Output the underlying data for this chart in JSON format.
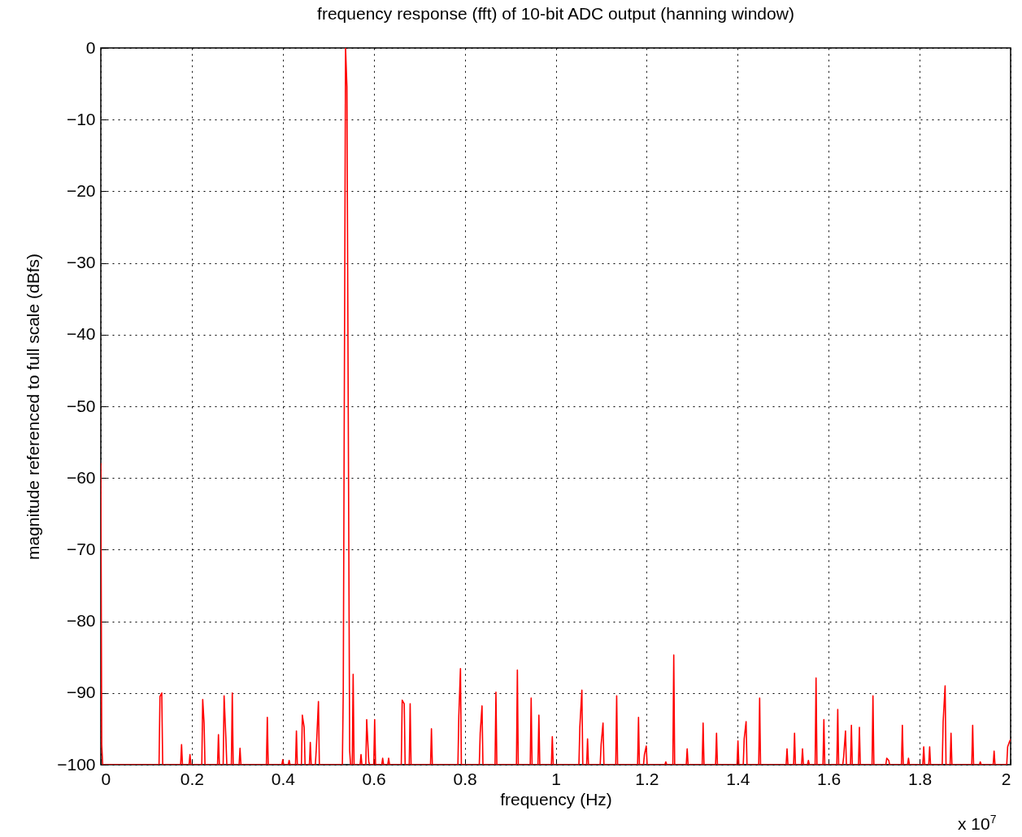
{
  "chart_data": {
    "type": "line",
    "title": "frequency response (fft) of 10-bit ADC output (hanning window)",
    "xlabel": "frequency (Hz)",
    "ylabel": "magnitude referenced to full scale (dBfs)",
    "annotations": [
      "x 10$^{7}$"
    ],
    "xlim": [
      0,
      2
    ],
    "ylim": [
      -100,
      0
    ],
    "xticks": [
      0,
      0.2,
      0.4,
      0.6,
      0.8,
      1,
      1.2,
      1.4,
      1.6,
      1.8,
      2
    ],
    "yticks": [
      -100,
      -90,
      -80,
      -70,
      -60,
      -50,
      -40,
      -30,
      -20,
      -10,
      0
    ],
    "grid": true,
    "line_style": "solid",
    "x": [
      0,
      0.002,
      0.004,
      0.128,
      0.13,
      0.134,
      0.136,
      0.1755,
      0.1775,
      0.1795,
      0.194,
      0.196,
      0.198,
      0.222,
      0.224,
      0.227,
      0.229,
      0.2566,
      0.2586,
      0.2606,
      0.269,
      0.271,
      0.275,
      0.277,
      0.287,
      0.289,
      0.291,
      0.304,
      0.306,
      0.308,
      0.364,
      0.366,
      0.368,
      0.398,
      0.4,
      0.402,
      0.412,
      0.414,
      0.416,
      0.428,
      0.43,
      0.432,
      0.441,
      0.443,
      0.447,
      0.449,
      0.4585,
      0.4605,
      0.4625,
      0.4716,
      0.4736,
      0.4784,
      0.4804,
      0.531,
      0.533,
      0.538,
      0.541,
      0.547,
      0.549,
      0.5527,
      0.5547,
      0.5567,
      0.57,
      0.572,
      0.574,
      0.5825,
      0.5845,
      0.589,
      0.591,
      0.6,
      0.602,
      0.604,
      0.6176,
      0.6196,
      0.6216,
      0.6307,
      0.6327,
      0.6347,
      0.6605,
      0.6625,
      0.667,
      0.669,
      0.678,
      0.68,
      0.682,
      0.7248,
      0.7268,
      0.7288,
      0.785,
      0.787,
      0.7906,
      0.7926,
      0.832,
      0.834,
      0.838,
      0.84,
      0.8666,
      0.8686,
      0.8706,
      0.9137,
      0.9157,
      0.9177,
      0.944,
      0.946,
      0.948,
      0.961,
      0.963,
      0.965,
      0.9905,
      0.9925,
      0.9945,
      1.051,
      1.053,
      1.0575,
      1.0595,
      1.068,
      1.07,
      1.072,
      1.0978,
      1.0998,
      1.104,
      1.106,
      1.132,
      1.134,
      1.136,
      1.18,
      1.182,
      1.184,
      1.193,
      1.195,
      1.199,
      1.201,
      1.24,
      1.242,
      1.244,
      1.2575,
      1.2595,
      1.2615,
      1.287,
      1.289,
      1.291,
      1.322,
      1.324,
      1.326,
      1.3515,
      1.3535,
      1.3555,
      1.3986,
      1.4006,
      1.4026,
      1.4123,
      1.4143,
      1.4185,
      1.4205,
      1.4463,
      1.4483,
      1.4503,
      1.5065,
      1.5085,
      1.5105,
      1.523,
      1.525,
      1.527,
      1.5405,
      1.5425,
      1.5445,
      1.5535,
      1.5555,
      1.5575,
      1.5703,
      1.5723,
      1.5743,
      1.5875,
      1.5895,
      1.5915,
      1.618,
      1.62,
      1.622,
      1.631,
      1.633,
      1.637,
      1.639,
      1.648,
      1.65,
      1.652,
      1.6656,
      1.6676,
      1.6696,
      1.6954,
      1.6974,
      1.6994,
      1.7257,
      1.7277,
      1.732,
      1.734,
      1.76,
      1.762,
      1.764,
      1.7735,
      1.7755,
      1.7775,
      1.807,
      1.809,
      1.811,
      1.82,
      1.822,
      1.824,
      1.8497,
      1.8517,
      1.856,
      1.858,
      1.867,
      1.869,
      1.871,
      1.9146,
      1.9166,
      1.9186,
      1.9313,
      1.9333,
      1.9353,
      1.9617,
      1.9637,
      1.9657,
      1.9915,
      1.9935,
      1.998,
      2
    ],
    "series": [
      {
        "color": "#ff0000",
        "values": [
          -58,
          -97.2,
          -100,
          -100,
          -90.5,
          -90,
          -100,
          -100,
          -97.2,
          -100,
          -100,
          -98.6,
          -100,
          -100,
          -90.9,
          -94.2,
          -100,
          -100,
          -95.8,
          -100,
          -100,
          -90.4,
          -96.4,
          -100,
          -100,
          -90,
          -100,
          -100,
          -97.7,
          -100,
          -100,
          -93.4,
          -100,
          -100,
          -99.3,
          -100,
          -100,
          -99.4,
          -100,
          -100,
          -95.3,
          -100,
          -100,
          -93.1,
          -94.8,
          -100,
          -100,
          -96.9,
          -100,
          -100,
          -97.9,
          -91.2,
          -100,
          -100,
          -89.6,
          0,
          -5.4,
          -98,
          -100,
          -100,
          -87.4,
          -100,
          -100,
          -98.6,
          -100,
          -100,
          -93.7,
          -99.6,
          -100,
          -100,
          -93.7,
          -100,
          -100,
          -99.1,
          -100,
          -100,
          -99.1,
          -100,
          -100,
          -91,
          -91.5,
          -100,
          -100,
          -91.5,
          -100,
          -100,
          -95,
          -100,
          -100,
          -93.2,
          -86.6,
          -100,
          -100,
          -95.6,
          -91.8,
          -100,
          -100,
          -89.9,
          -100,
          -100,
          -86.8,
          -100,
          -100,
          -90.7,
          -100,
          -100,
          -93.1,
          -100,
          -100,
          -96.1,
          -100,
          -100,
          -94.8,
          -89.6,
          -100,
          -100,
          -96.4,
          -100,
          -100,
          -97.2,
          -94.2,
          -100,
          -100,
          -90.4,
          -100,
          -100,
          -93.4,
          -100,
          -100,
          -98.6,
          -97.4,
          -100,
          -100,
          -99.6,
          -100,
          -100,
          -84.7,
          -100,
          -100,
          -97.8,
          -100,
          -100,
          -94.2,
          -100,
          -100,
          -95.6,
          -100,
          -100,
          -96.7,
          -100,
          -100,
          -96.4,
          -94,
          -100,
          -100,
          -90.7,
          -100,
          -100,
          -97.8,
          -100,
          -100,
          -95.6,
          -100,
          -100,
          -97.8,
          -100,
          -100,
          -99.4,
          -100,
          -100,
          -87.9,
          -100,
          -100,
          -93.7,
          -100,
          -100,
          -92.3,
          -100,
          -100,
          -98.9,
          -95.3,
          -100,
          -100,
          -94.5,
          -100,
          -100,
          -94.8,
          -100,
          -100,
          -90.4,
          -100,
          -100,
          -99.1,
          -99.4,
          -100,
          -100,
          -94.5,
          -100,
          -100,
          -99.1,
          -100,
          -100,
          -97.5,
          -100,
          -100,
          -97.5,
          -100,
          -100,
          -94,
          -89,
          -100,
          -100,
          -95.6,
          -100,
          -100,
          -94.5,
          -100,
          -100,
          -99.6,
          -100,
          -100,
          -98.1,
          -100,
          -100,
          -97.5,
          -96.7,
          -96.5
        ]
      }
    ]
  }
}
